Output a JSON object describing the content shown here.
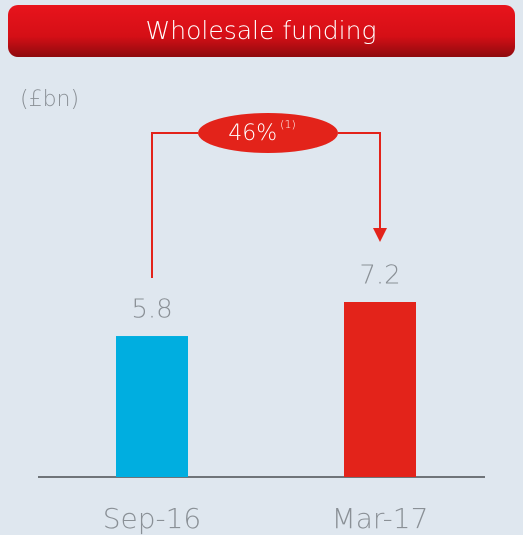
{
  "chart_data": {
    "type": "bar",
    "title": "Wholesale funding",
    "unit_label": "(£bn)",
    "categories": [
      "Sep-16",
      "Mar-17"
    ],
    "values": [
      5.8,
      7.2
    ],
    "colors": [
      "#00aee0",
      "#e3231a"
    ],
    "annotation": {
      "text": "46%",
      "note": "(1)"
    }
  }
}
